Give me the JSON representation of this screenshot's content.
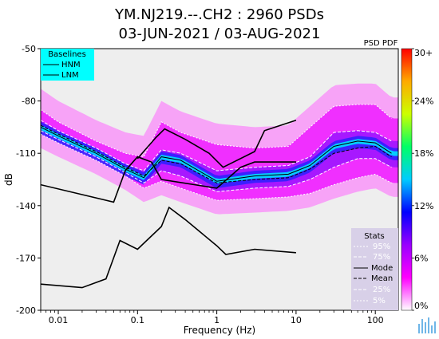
{
  "chart_data": {
    "type": "heatmap",
    "title_line1": "YM.NJ219.--.CH2 : 2960 PSDs",
    "title_line2": "03-JUN-2021 / 03-AUG-2021",
    "xlabel": "Frequency (Hz)",
    "ylabel": "dB",
    "x_scale": "log",
    "xlim": [
      0.006,
      195
    ],
    "ylim": [
      -200,
      -50
    ],
    "x_ticks": [
      {
        "value": 0.01,
        "label": "0.01"
      },
      {
        "value": 0.1,
        "label": "0.1"
      },
      {
        "value": 1,
        "label": "1"
      },
      {
        "value": 10,
        "label": "10"
      },
      {
        "value": 100,
        "label": "100"
      }
    ],
    "y_ticks": [
      {
        "value": -50,
        "label": "-50"
      },
      {
        "value": -80,
        "label": "-80"
      },
      {
        "value": -110,
        "label": "-110"
      },
      {
        "value": -140,
        "label": "-140"
      },
      {
        "value": -170,
        "label": "-170"
      },
      {
        "value": -200,
        "label": "-200"
      }
    ],
    "colorbar": {
      "title": "PSD PDF",
      "range": [
        0,
        30
      ],
      "ticks": [
        {
          "value": 30,
          "label": "30+"
        },
        {
          "value": 24,
          "label": "24%"
        },
        {
          "value": 18,
          "label": "18%"
        },
        {
          "value": 12,
          "label": "12%"
        },
        {
          "value": 6,
          "label": "6%"
        },
        {
          "value": 0,
          "label": "0%"
        }
      ],
      "colors": [
        "#ffffff",
        "#ff00ff",
        "#9900ff",
        "#0000ff",
        "#00ccff",
        "#00ff66",
        "#ccff00",
        "#ffaa00",
        "#ff0000"
      ]
    },
    "baselines": {
      "title": "Baselines",
      "entries": [
        "HNM",
        "LNM"
      ],
      "HNM": [
        [
          0.1,
          -113
        ],
        [
          0.17,
          -101
        ],
        [
          0.22,
          -96
        ],
        [
          0.4,
          -102
        ],
        [
          0.8,
          -110
        ],
        [
          1.2,
          -118
        ],
        [
          3,
          -109
        ],
        [
          4,
          -97
        ],
        [
          10,
          -91
        ]
      ],
      "LNM": [
        [
          0.006,
          -128
        ],
        [
          0.05,
          -138
        ],
        [
          0.07,
          -120
        ],
        [
          0.1,
          -112
        ],
        [
          0.15,
          -115
        ],
        [
          0.2,
          -125
        ],
        [
          1,
          -130
        ],
        [
          2,
          -118
        ],
        [
          3,
          -115
        ],
        [
          10,
          -115
        ]
      ],
      "NLNM_low": [
        [
          0.006,
          -185
        ],
        [
          0.02,
          -187
        ],
        [
          0.04,
          -182
        ],
        [
          0.06,
          -160
        ],
        [
          0.1,
          -165
        ],
        [
          0.2,
          -152
        ],
        [
          0.25,
          -141
        ],
        [
          0.4,
          -148
        ],
        [
          1,
          -163
        ],
        [
          1.3,
          -168
        ],
        [
          3,
          -165
        ],
        [
          10,
          -167
        ]
      ]
    },
    "stats": {
      "title": "Stats",
      "entries": [
        "95%",
        "75%",
        "Mode",
        "Mean",
        "25%",
        "5%"
      ]
    },
    "series": [
      {
        "name": "95%",
        "points": [
          [
            0.006,
            -85
          ],
          [
            0.01,
            -92
          ],
          [
            0.03,
            -103
          ],
          [
            0.07,
            -110
          ],
          [
            0.12,
            -112
          ],
          [
            0.2,
            -92
          ],
          [
            0.35,
            -98
          ],
          [
            1,
            -105
          ],
          [
            3,
            -107
          ],
          [
            8,
            -106
          ],
          [
            15,
            -95
          ],
          [
            30,
            -83
          ],
          [
            60,
            -82
          ],
          [
            100,
            -82
          ],
          [
            160,
            -90
          ]
        ]
      },
      {
        "name": "75%",
        "points": [
          [
            0.006,
            -91
          ],
          [
            0.01,
            -97
          ],
          [
            0.03,
            -107
          ],
          [
            0.07,
            -116
          ],
          [
            0.12,
            -120
          ],
          [
            0.2,
            -108
          ],
          [
            0.35,
            -110
          ],
          [
            1,
            -120
          ],
          [
            3,
            -118
          ],
          [
            8,
            -117
          ],
          [
            15,
            -112
          ],
          [
            30,
            -98
          ],
          [
            60,
            -97
          ],
          [
            100,
            -98
          ],
          [
            160,
            -103
          ]
        ]
      },
      {
        "name": "Mode",
        "points": [
          [
            0.006,
            -95
          ],
          [
            0.01,
            -100
          ],
          [
            0.03,
            -110
          ],
          [
            0.07,
            -119
          ],
          [
            0.12,
            -124
          ],
          [
            0.2,
            -112
          ],
          [
            0.35,
            -114
          ],
          [
            1,
            -126
          ],
          [
            3,
            -123
          ],
          [
            8,
            -122
          ],
          [
            15,
            -117
          ],
          [
            30,
            -106
          ],
          [
            60,
            -103
          ],
          [
            100,
            -104
          ],
          [
            160,
            -110
          ]
        ]
      },
      {
        "name": "Mean",
        "points": [
          [
            0.006,
            -94
          ],
          [
            0.01,
            -99
          ],
          [
            0.03,
            -109
          ],
          [
            0.07,
            -118
          ],
          [
            0.12,
            -123
          ],
          [
            0.2,
            -114
          ],
          [
            0.35,
            -116
          ],
          [
            1,
            -127
          ],
          [
            3,
            -125
          ],
          [
            8,
            -124
          ],
          [
            15,
            -119
          ],
          [
            30,
            -110
          ],
          [
            60,
            -107
          ],
          [
            100,
            -106
          ],
          [
            160,
            -112
          ]
        ]
      },
      {
        "name": "25%",
        "points": [
          [
            0.006,
            -97
          ],
          [
            0.01,
            -102
          ],
          [
            0.03,
            -112
          ],
          [
            0.07,
            -121
          ],
          [
            0.12,
            -127
          ],
          [
            0.2,
            -120
          ],
          [
            0.35,
            -123
          ],
          [
            1,
            -132
          ],
          [
            3,
            -130
          ],
          [
            8,
            -129
          ],
          [
            15,
            -125
          ],
          [
            30,
            -118
          ],
          [
            60,
            -113
          ],
          [
            100,
            -113
          ],
          [
            160,
            -118
          ]
        ]
      },
      {
        "name": "5%",
        "points": [
          [
            0.006,
            -99
          ],
          [
            0.01,
            -104
          ],
          [
            0.03,
            -114
          ],
          [
            0.07,
            -123
          ],
          [
            0.12,
            -130
          ],
          [
            0.2,
            -126
          ],
          [
            0.35,
            -130
          ],
          [
            1,
            -137
          ],
          [
            3,
            -136
          ],
          [
            8,
            -135
          ],
          [
            15,
            -133
          ],
          [
            30,
            -128
          ],
          [
            60,
            -124
          ],
          [
            100,
            -122
          ],
          [
            160,
            -127
          ]
        ]
      }
    ],
    "colors": {
      "baseline_legend_bg": "#00ffff",
      "stats_legend_bg": "#d8d0e8",
      "plot_bg": "#eeeeee"
    }
  }
}
